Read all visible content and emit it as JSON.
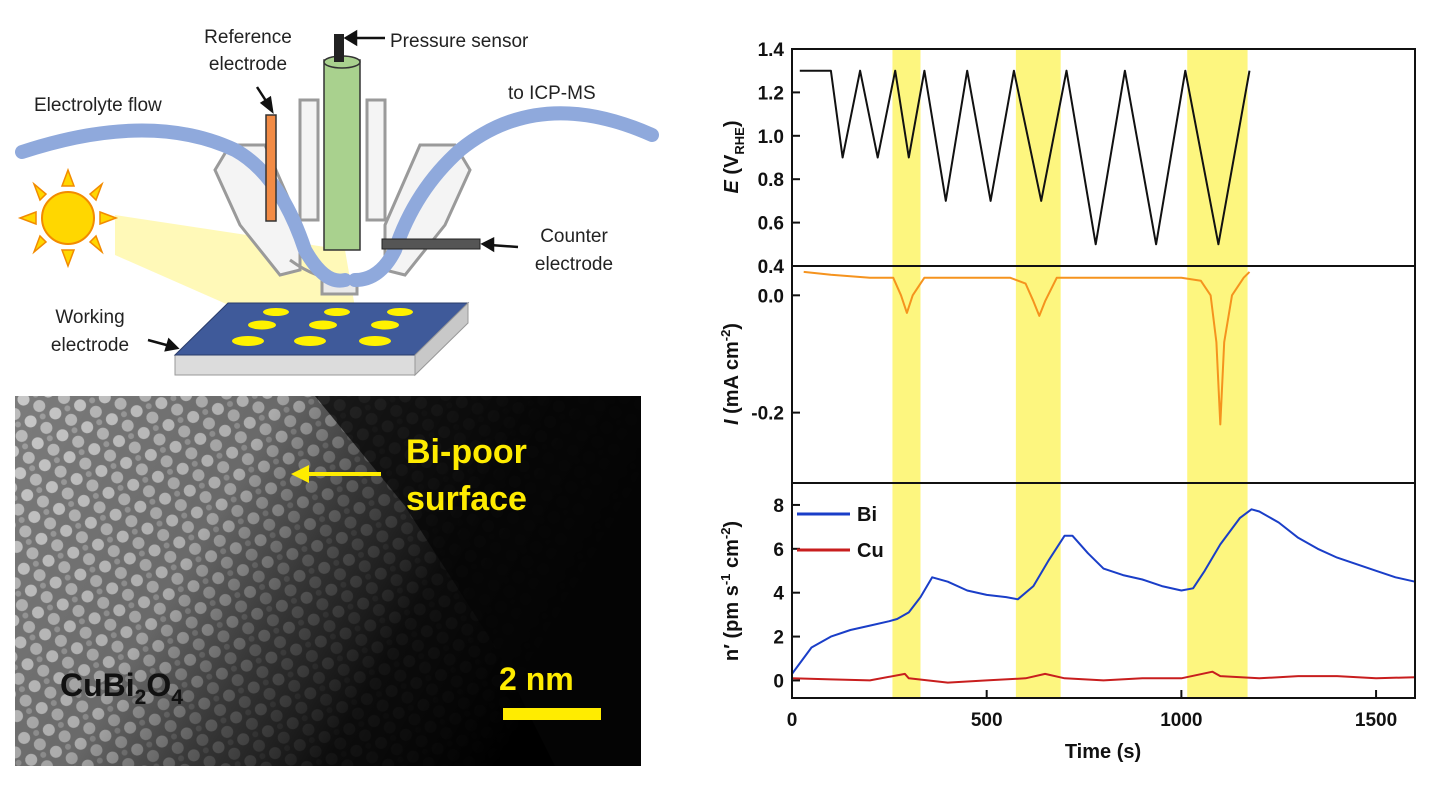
{
  "schematic": {
    "labels": {
      "reference_electrode_line1": "Reference",
      "reference_electrode_line2": "electrode",
      "pressure_sensor": "Pressure sensor",
      "electrolyte_flow": "Electrolyte flow",
      "to_icpms": "to ICP-MS",
      "counter_electrode_line1": "Counter",
      "counter_electrode_line2": "electrode",
      "working_electrode_line1": "Working",
      "working_electrode_line2": "electrode"
    },
    "colors": {
      "tubing": "#8fa9dc",
      "reference_electrode": "#f28b45",
      "pressure_sensor": "#a9d18e",
      "working_electrode": "#3f5a9a",
      "sun": "#ffd700",
      "light_cone": "#fff7a0"
    }
  },
  "stem_image": {
    "surface_label_line1": "Bi-poor",
    "surface_label_line2": "surface",
    "material_main": "CuBi",
    "material_sub1": "2",
    "material_mid": "O",
    "material_sub2": "4",
    "scale_bar_label": "2 nm",
    "label_color": "#ffec00"
  },
  "chart_data": [
    {
      "type": "line",
      "panel": "potential",
      "ylabel_main": "E",
      "ylabel_unit": "(V",
      "ylabel_sub": "RHE",
      "ylabel_close": ")",
      "ylim": [
        0.4,
        1.4
      ],
      "yticks": [
        "0.4",
        "0.6",
        "0.8",
        "1.0",
        "1.2",
        "1.4"
      ],
      "series": [
        {
          "color": "#111111",
          "x": [
            20,
            100,
            130,
            175,
            220,
            265,
            300,
            340,
            395,
            450,
            510,
            570,
            640,
            705,
            780,
            855,
            935,
            1010,
            1095,
            1175
          ],
          "y": [
            1.3,
            1.3,
            0.9,
            1.3,
            0.9,
            1.3,
            0.9,
            1.3,
            0.7,
            1.3,
            0.7,
            1.3,
            0.7,
            1.3,
            0.5,
            1.3,
            0.5,
            1.3,
            0.5,
            1.3
          ]
        }
      ]
    },
    {
      "type": "line",
      "panel": "current",
      "ylabel_main": "I",
      "ylabel_unit": "(mA cm",
      "ylabel_sup": "-2",
      "ylabel_close": ")",
      "ylim": [
        -0.32,
        0.05
      ],
      "yticks": [
        "-0.2",
        "0.0"
      ],
      "series": [
        {
          "color": "#f5931e",
          "x": [
            30,
            100,
            200,
            260,
            280,
            295,
            310,
            340,
            450,
            560,
            600,
            620,
            635,
            650,
            680,
            800,
            1000,
            1050,
            1075,
            1090,
            1100,
            1110,
            1130,
            1160,
            1175
          ],
          "y": [
            0.04,
            0.035,
            0.03,
            0.03,
            0.0,
            -0.03,
            0.0,
            0.03,
            0.03,
            0.03,
            0.02,
            -0.01,
            -0.035,
            -0.01,
            0.03,
            0.03,
            0.03,
            0.025,
            0.0,
            -0.08,
            -0.22,
            -0.08,
            0.0,
            0.03,
            0.04
          ]
        }
      ]
    },
    {
      "type": "line",
      "panel": "dissolution",
      "ylabel_main": "n′ (pm s",
      "ylabel_sup1": "-1",
      "ylabel_mid": " cm",
      "ylabel_sup2": "-2",
      "ylabel_close": ")",
      "xlabel": "Time (s)",
      "xlim": [
        0,
        1600
      ],
      "ylim": [
        -0.8,
        9
      ],
      "xticks": [
        "0",
        "500",
        "1000",
        "1500"
      ],
      "yticks": [
        "0",
        "2",
        "4",
        "6",
        "8"
      ],
      "legend_position": "top-left",
      "series": [
        {
          "name": "Bi",
          "color": "#1a3ec8",
          "x": [
            0,
            50,
            100,
            150,
            200,
            250,
            270,
            300,
            330,
            360,
            400,
            450,
            500,
            550,
            580,
            620,
            660,
            700,
            720,
            760,
            800,
            850,
            900,
            950,
            1000,
            1030,
            1060,
            1100,
            1150,
            1180,
            1200,
            1250,
            1300,
            1350,
            1400,
            1450,
            1500,
            1550,
            1600
          ],
          "y": [
            0.3,
            1.5,
            2.0,
            2.3,
            2.5,
            2.7,
            2.8,
            3.1,
            3.8,
            4.7,
            4.5,
            4.1,
            3.9,
            3.8,
            3.7,
            4.3,
            5.5,
            6.6,
            6.6,
            5.8,
            5.1,
            4.8,
            4.6,
            4.3,
            4.1,
            4.2,
            5.0,
            6.2,
            7.4,
            7.8,
            7.7,
            7.2,
            6.5,
            6.0,
            5.6,
            5.3,
            5.0,
            4.7,
            4.5
          ]
        },
        {
          "name": "Cu",
          "color": "#c81e1e",
          "x": [
            0,
            100,
            200,
            290,
            300,
            400,
            500,
            600,
            650,
            700,
            800,
            900,
            1000,
            1080,
            1100,
            1200,
            1300,
            1400,
            1500,
            1600
          ],
          "y": [
            0.1,
            0.05,
            0.0,
            0.3,
            0.1,
            -0.1,
            0.0,
            0.1,
            0.3,
            0.1,
            0.0,
            0.1,
            0.1,
            0.4,
            0.2,
            0.1,
            0.2,
            0.2,
            0.1,
            0.15
          ]
        }
      ]
    }
  ],
  "highlight_bands": [
    {
      "x0": 258,
      "x1": 330
    },
    {
      "x0": 575,
      "x1": 690
    },
    {
      "x0": 1015,
      "x1": 1170
    }
  ],
  "highlight_color": "#fdf569"
}
